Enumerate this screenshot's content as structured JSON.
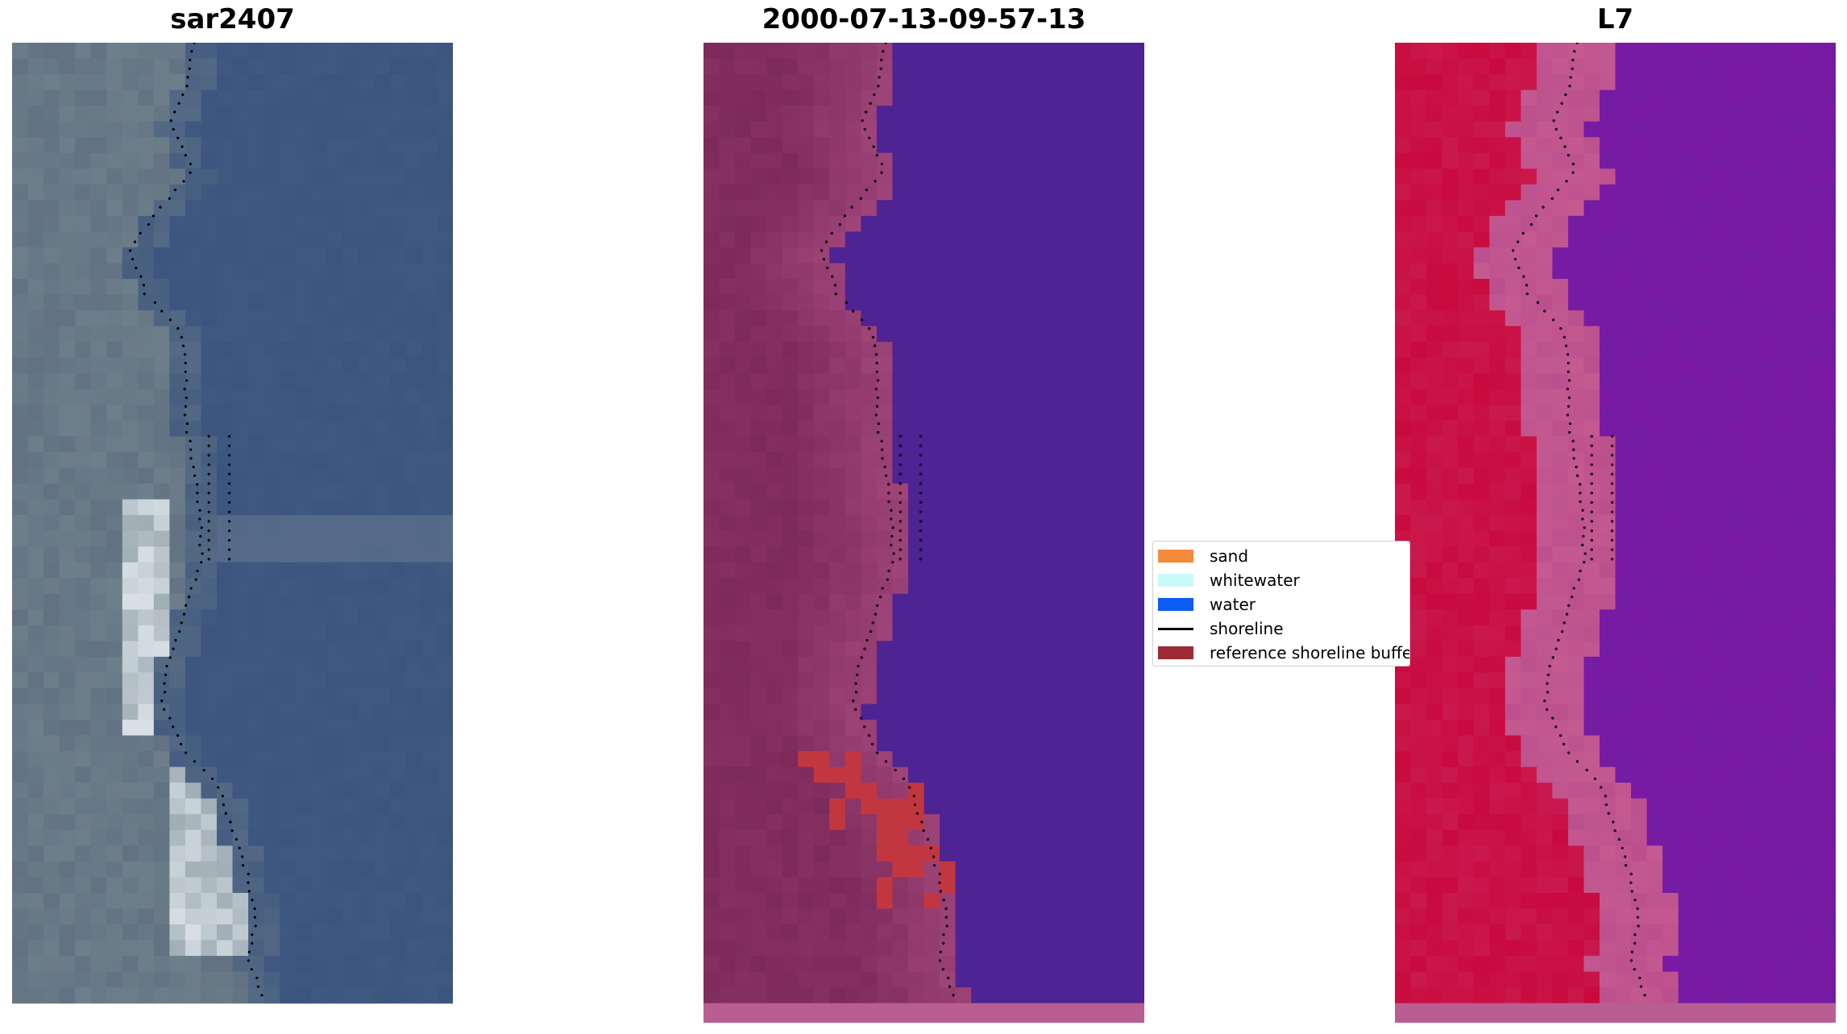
{
  "panels": [
    {
      "title": "sar2407"
    },
    {
      "title": "2000-07-13-09-57-13"
    },
    {
      "title": "L7"
    }
  ],
  "legend": {
    "items": [
      {
        "label": "sand",
        "color": "#f58a3c",
        "kind": "patch"
      },
      {
        "label": "whitewater",
        "color": "#c8fafa",
        "kind": "patch"
      },
      {
        "label": "water",
        "color": "#0a5cf5",
        "kind": "patch"
      },
      {
        "label": "shoreline",
        "color": "#000000",
        "kind": "line"
      },
      {
        "label": "reference shoreline buffer",
        "color": "#9b2a32",
        "kind": "patch"
      }
    ]
  },
  "colors": {
    "rgb_water": "#3b557e",
    "rgb_land": "#6d7f8a",
    "rgb_bright": "#dfe7ec",
    "classified_water": "#4e2393",
    "classified_land": "#7c2a5a",
    "classified_land_light": "#9e4479",
    "classified_buffer": "#c2373f",
    "nir_land": "#c90a3e",
    "nir_water": "#7a1aa4",
    "nir_transition": "#c45a90",
    "bottom_strip": "#b85e92",
    "shoreline_dots": "#000000"
  }
}
